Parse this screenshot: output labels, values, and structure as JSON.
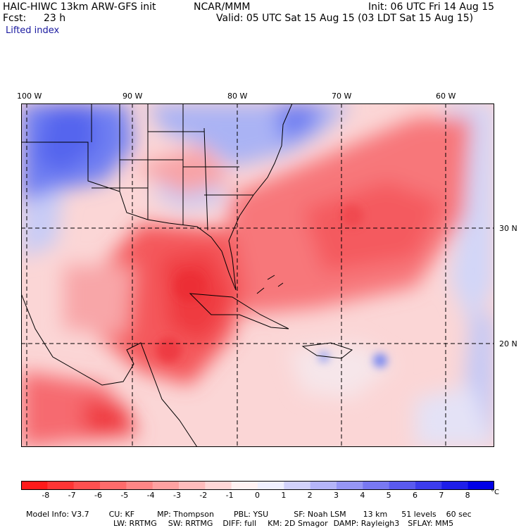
{
  "header": {
    "model": "HAIC-HIWC 13km ARW-GFS init",
    "org": "NCAR/MMM",
    "init": "Init: 06 UTC Fri 14 Aug 15",
    "fcst_label": "Fcst:",
    "fcst_value": "23 h",
    "valid": "Valid: 05 UTC Sat 15 Aug 15 (03 LDT Sat 15 Aug 15)",
    "field": "Lifted index"
  },
  "axes": {
    "lon_labels": [
      "100 W",
      "90 W",
      "80 W",
      "70 W",
      "60 W"
    ],
    "lat_labels": [
      "30 N",
      "20 N"
    ]
  },
  "colors": {
    "negative_max": "#ff1a1a",
    "neutral": "#ffffff",
    "positive_max": "#0000e6"
  },
  "colorbar": {
    "labels": [
      "-8",
      "-7",
      "-6",
      "-5",
      "-4",
      "-3",
      "-2",
      "-1",
      "0",
      "1",
      "2",
      "3",
      "4",
      "5",
      "6",
      "7",
      "8"
    ],
    "unit": "°C"
  },
  "info": {
    "line1": [
      {
        "k": "Model Info: V3.7"
      },
      {
        "k": "CU: KF"
      },
      {
        "k": "MP: Thompson"
      },
      {
        "k": "PBL: YSU"
      },
      {
        "k": "SF: Noah LSM"
      },
      {
        "k": "13 km"
      },
      {
        "k": "51 levels"
      },
      {
        "k": "60 sec"
      }
    ],
    "line2": [
      {
        "k": "LW: RRTMG"
      },
      {
        "k": "SW: RRTMG"
      },
      {
        "k": "DIFF: full"
      },
      {
        "k": "KM: 2D Smagor"
      },
      {
        "k": "DAMP: Rayleigh3"
      },
      {
        "k": "SFLAY: MM5"
      }
    ]
  }
}
